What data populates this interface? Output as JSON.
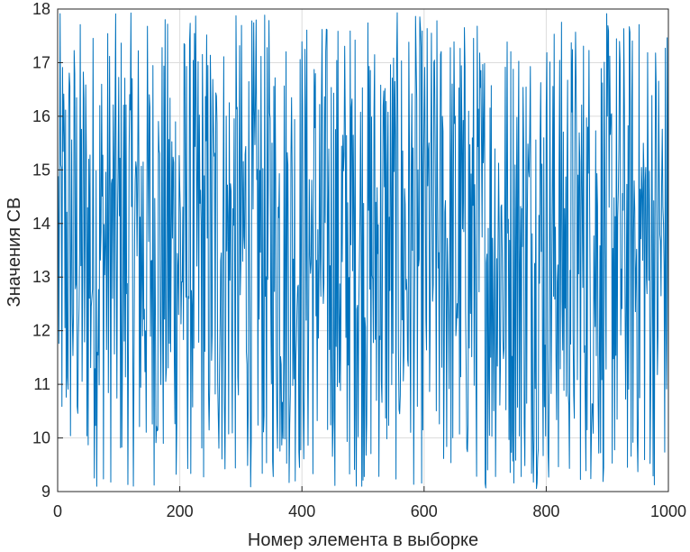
{
  "chart_data": {
    "type": "line",
    "xlabel": "Номер элемента в выборке",
    "ylabel": "Значения СВ",
    "xlim": [
      0,
      1000
    ],
    "ylim": [
      9,
      18
    ],
    "xticks": [
      0,
      200,
      400,
      600,
      800,
      1000
    ],
    "yticks": [
      9,
      10,
      11,
      12,
      13,
      14,
      15,
      16,
      17,
      18
    ],
    "grid": true,
    "series": [
      {
        "color": "#0072BD",
        "description": "1000 samples of a random variable, values spread roughly uniformly between about 9.1 and 17.9, mean about 13.5",
        "n": 1000,
        "min": 9.05,
        "max": 17.95,
        "mean": 13.5
      }
    ]
  }
}
